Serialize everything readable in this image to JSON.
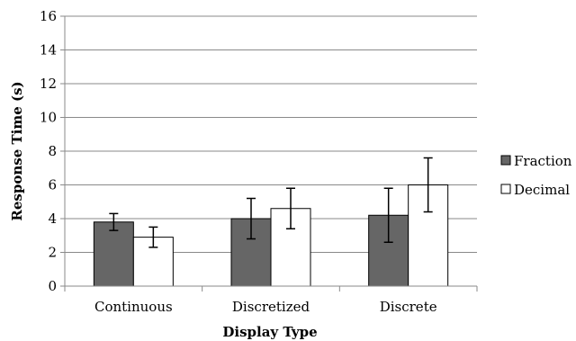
{
  "chart_data": {
    "type": "bar",
    "title": "",
    "xlabel": "Display Type",
    "ylabel": "Response Time (s)",
    "ylim": [
      0,
      16
    ],
    "yticks": [
      0,
      2,
      4,
      6,
      8,
      10,
      12,
      14,
      16
    ],
    "grid": true,
    "legend_position": "right",
    "categories": [
      "Continuous",
      "Discretized",
      "Discrete"
    ],
    "series": [
      {
        "name": "Fraction",
        "color": "#666666",
        "values": [
          3.8,
          4.0,
          4.2
        ],
        "error": [
          0.5,
          1.2,
          1.6
        ]
      },
      {
        "name": "Decimal",
        "color": "#ffffff",
        "values": [
          2.9,
          4.6,
          6.0
        ],
        "error": [
          0.6,
          1.2,
          1.6
        ]
      }
    ]
  }
}
